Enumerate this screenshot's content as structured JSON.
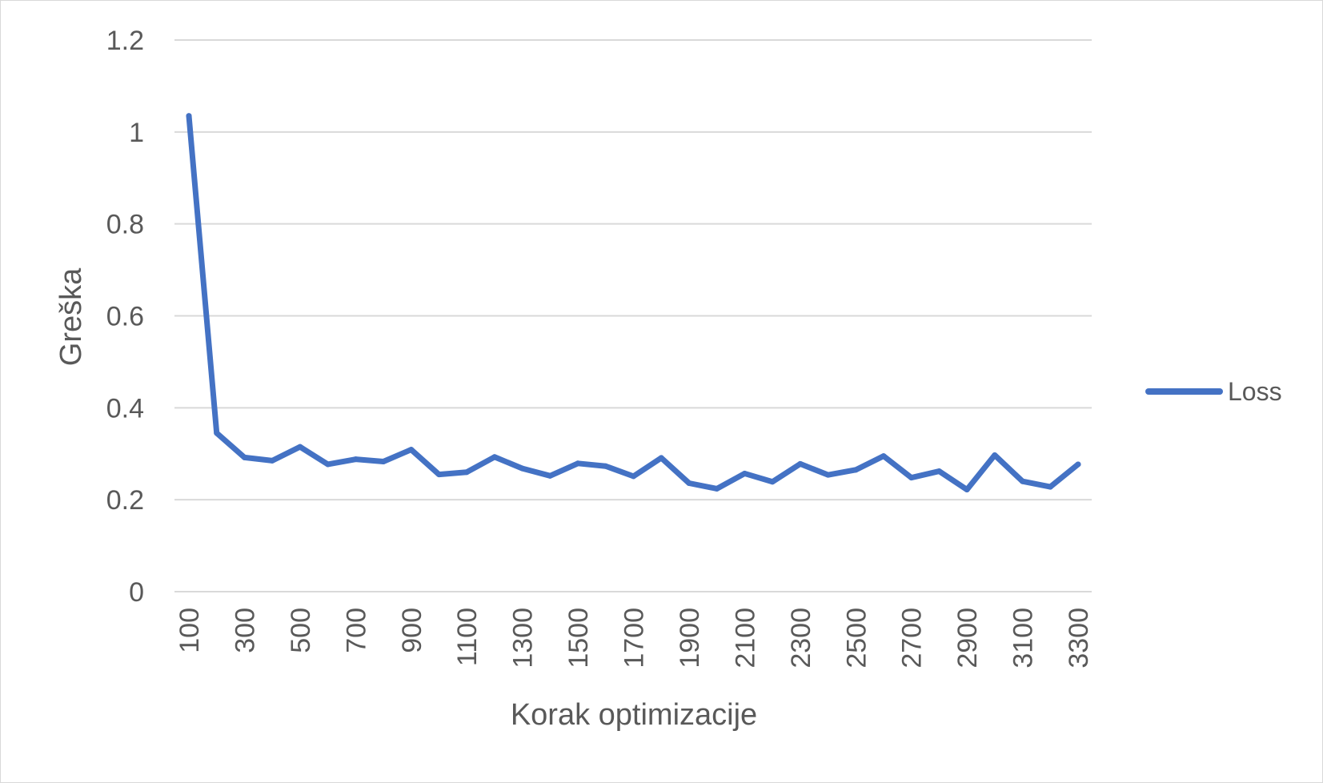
{
  "chart_data": {
    "type": "line",
    "title": "",
    "xlabel": "Korak optimizacije",
    "ylabel": "Greška",
    "ylim": [
      0,
      1.2
    ],
    "yticks": [
      "0",
      "0.2",
      "0.4",
      "0.6",
      "0.8",
      "1",
      "1.2"
    ],
    "x": [
      100,
      200,
      300,
      400,
      500,
      600,
      700,
      800,
      900,
      1000,
      1100,
      1200,
      1300,
      1400,
      1500,
      1600,
      1700,
      1800,
      1900,
      2000,
      2100,
      2200,
      2300,
      2400,
      2500,
      2600,
      2700,
      2800,
      2900,
      3000,
      3100,
      3200,
      3300
    ],
    "xtick_labels": [
      "100",
      "300",
      "500",
      "700",
      "900",
      "1100",
      "1300",
      "1500",
      "1700",
      "1900",
      "2100",
      "2300",
      "2500",
      "2700",
      "2900",
      "3100",
      "3300"
    ],
    "grid": true,
    "legend_position": "right",
    "series": [
      {
        "name": "Loss",
        "color": "#4472C4",
        "values": [
          1.035,
          0.345,
          0.292,
          0.285,
          0.315,
          0.277,
          0.288,
          0.283,
          0.309,
          0.255,
          0.26,
          0.293,
          0.268,
          0.252,
          0.279,
          0.273,
          0.251,
          0.291,
          0.236,
          0.224,
          0.257,
          0.239,
          0.278,
          0.254,
          0.265,
          0.295,
          0.248,
          0.262,
          0.222,
          0.297,
          0.24,
          0.228,
          0.277
        ]
      }
    ]
  }
}
